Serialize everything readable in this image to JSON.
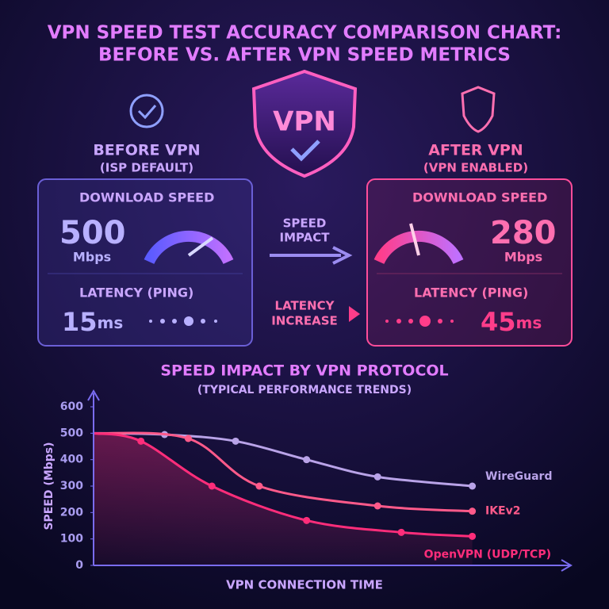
{
  "title": [
    "VPN SPEED TEST ACCURACY COMPARISON CHART:",
    "BEFORE VS. AFTER VPN SPEED METRICS"
  ],
  "shield": "VPN",
  "before": {
    "heading": "BEFORE VPN",
    "subheading": "(ISP DEFAULT)",
    "download_label": "DOWNLOAD SPEED",
    "download": 500,
    "download_unit": "Mbps",
    "latency_label": "LATENCY (PING)",
    "latency": 15,
    "latency_unit": "ms"
  },
  "after": {
    "heading": "AFTER VPN",
    "subheading": "(VPN ENABLED)",
    "download_label": "DOWNLOAD SPEED",
    "download": 280,
    "download_unit": "Mbps",
    "latency_label": "LATENCY (PING)",
    "latency": 45,
    "latency_unit": "ms"
  },
  "speed_impact": [
    "SPEED",
    "IMPACT"
  ],
  "latency_increase": [
    "LATENCY",
    "INCREASE"
  ],
  "chart_data": {
    "type": "line",
    "title": "SPEED IMPACT BY VPN PROTOCOL",
    "subtitle": "(TYPICAL PERFORMANCE TRENDS)",
    "x_label": "VPN CONNECTION TIME",
    "y_label": "SPEED (Mbps)",
    "xlim": [
      0,
      10
    ],
    "ylim": [
      0,
      600
    ],
    "yticks": [
      0,
      100,
      200,
      300,
      400,
      500,
      600
    ],
    "series": [
      {
        "name": "WireGuard",
        "color": "#b9a3e8",
        "x": [
          0,
          1.5,
          3,
          4.5,
          6,
          8
        ],
        "values": [
          500,
          495,
          470,
          400,
          335,
          300
        ]
      },
      {
        "name": "IKEv2",
        "color": "#ff5a8a",
        "x": [
          0,
          2,
          3.5,
          6,
          8
        ],
        "values": [
          500,
          480,
          300,
          225,
          205
        ]
      },
      {
        "name": "OpenVPN (UDP/TCP)",
        "color": "#ff2d7a",
        "x": [
          0,
          1,
          2.5,
          4.5,
          6.5,
          8
        ],
        "values": [
          500,
          470,
          300,
          170,
          125,
          110
        ]
      }
    ]
  }
}
